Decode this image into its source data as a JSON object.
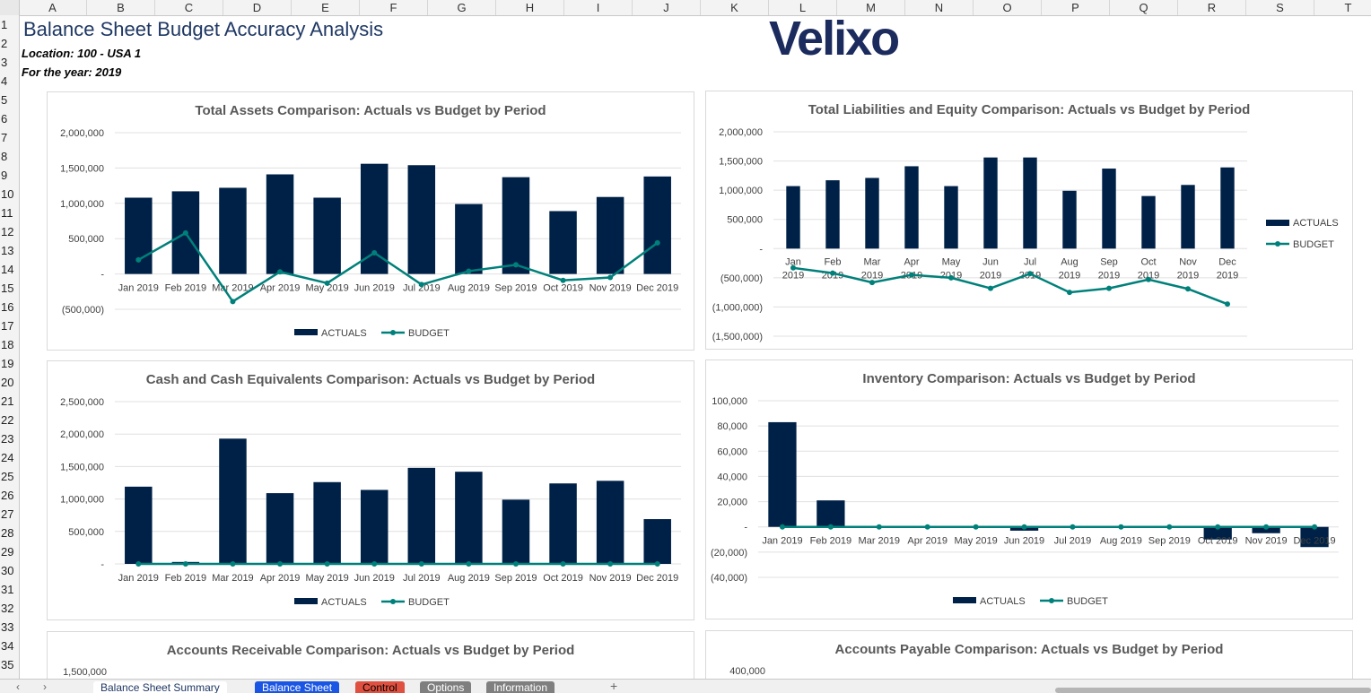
{
  "columns": [
    "A",
    "B",
    "C",
    "D",
    "E",
    "F",
    "G",
    "H",
    "I",
    "J",
    "K",
    "L",
    "M",
    "N",
    "O",
    "P",
    "Q",
    "R",
    "S",
    "T"
  ],
  "rows": [
    "1",
    "2",
    "3",
    "4",
    "5",
    "6",
    "7",
    "8",
    "9",
    "10",
    "11",
    "12",
    "13",
    "14",
    "15",
    "16",
    "17",
    "18",
    "19",
    "20",
    "21",
    "22",
    "23",
    "24",
    "25",
    "26",
    "27",
    "28",
    "29",
    "30",
    "31",
    "32",
    "33",
    "34",
    "35"
  ],
  "sheet": {
    "title": "Balance Sheet Budget Accuracy Analysis",
    "location": "Location: 100 - USA 1",
    "year": "For the year: 2019",
    "logo_text": "Velixo",
    "logo_color": "#1c2b5e"
  },
  "colors": {
    "actuals": "#002147",
    "budget": "#00807a",
    "grid": "#e0e0e0"
  },
  "tabs": [
    {
      "label": "Balance Sheet Summary",
      "bg": "#ffffff",
      "fg": "#1f3864",
      "active": true
    },
    {
      "label": "Balance Sheet",
      "bg": "#1a55e3",
      "fg": "#ffffff",
      "active": false
    },
    {
      "label": "Control",
      "bg": "#e05040",
      "fg": "#000000",
      "active": false
    },
    {
      "label": "Options",
      "bg": "#7f7f7f",
      "fg": "#ffffff",
      "active": false
    },
    {
      "label": "Information",
      "bg": "#7f7f7f",
      "fg": "#ffffff",
      "active": false
    }
  ],
  "add_sheet_label": "+",
  "chart_data": [
    {
      "type": "bar",
      "title": "Total Assets Comparison: Actuals vs Budget by Period",
      "categories": [
        "Jan 2019",
        "Feb 2019",
        "Mar 2019",
        "Apr 2019",
        "May 2019",
        "Jun 2019",
        "Jul 2019",
        "Aug 2019",
        "Sep 2019",
        "Oct 2019",
        "Nov 2019",
        "Dec 2019"
      ],
      "series": [
        {
          "name": "ACTUALS",
          "type": "bar",
          "values": [
            1080000,
            1170000,
            1220000,
            1410000,
            1080000,
            1560000,
            1540000,
            990000,
            1370000,
            890000,
            1090000,
            1380000
          ]
        },
        {
          "name": "BUDGET",
          "type": "line",
          "values": [
            200000,
            580000,
            -390000,
            30000,
            -130000,
            300000,
            -150000,
            40000,
            130000,
            -90000,
            -50000,
            440000
          ]
        }
      ],
      "yticks": [
        "2,000,000",
        "1,500,000",
        "1,000,000",
        "500,000",
        "-",
        "(500,000)"
      ],
      "ylim": [
        -500000,
        2000000
      ],
      "legend": "bottom"
    },
    {
      "type": "bar",
      "title": "Total Liabilities and Equity Comparison: Actuals vs Budget by Period",
      "categories": [
        "Jan 2019",
        "Feb 2019",
        "Mar 2019",
        "Apr 2019",
        "May 2019",
        "Jun 2019",
        "Jul 2019",
        "Aug 2019",
        "Sep 2019",
        "Oct 2019",
        "Nov 2019",
        "Dec 2019"
      ],
      "series": [
        {
          "name": "ACTUALS",
          "type": "bar",
          "values": [
            1070000,
            1170000,
            1210000,
            1410000,
            1070000,
            1560000,
            1560000,
            990000,
            1370000,
            900000,
            1090000,
            1390000
          ]
        },
        {
          "name": "BUDGET",
          "type": "line",
          "values": [
            -330000,
            -420000,
            -580000,
            -450000,
            -500000,
            -680000,
            -430000,
            -750000,
            -680000,
            -530000,
            -690000,
            -950000
          ]
        }
      ],
      "yticks": [
        "2,000,000",
        "1,500,000",
        "1,000,000",
        "500,000",
        "-",
        "(500,000)",
        "(1,000,000)",
        "(1,500,000)"
      ],
      "ylim": [
        -1500000,
        2000000
      ],
      "legend": "right"
    },
    {
      "type": "bar",
      "title": "Cash and Cash Equivalents Comparison: Actuals vs Budget by Period",
      "categories": [
        "Jan 2019",
        "Feb 2019",
        "Mar 2019",
        "Apr 2019",
        "May 2019",
        "Jun 2019",
        "Jul 2019",
        "Aug 2019",
        "Sep 2019",
        "Oct 2019",
        "Nov 2019",
        "Dec 2019"
      ],
      "series": [
        {
          "name": "ACTUALS",
          "type": "bar",
          "values": [
            1190000,
            30000,
            1930000,
            1090000,
            1260000,
            1140000,
            1480000,
            1420000,
            990000,
            1240000,
            1280000,
            690000
          ]
        },
        {
          "name": "BUDGET",
          "type": "line",
          "values": [
            0,
            0,
            0,
            0,
            0,
            0,
            0,
            0,
            0,
            0,
            0,
            0
          ]
        }
      ],
      "yticks": [
        "2,500,000",
        "2,000,000",
        "1,500,000",
        "1,000,000",
        "500,000",
        "-"
      ],
      "ylim": [
        0,
        2500000
      ],
      "legend": "bottom"
    },
    {
      "type": "bar",
      "title": "Inventory Comparison: Actuals vs Budget by Period",
      "categories": [
        "Jan 2019",
        "Feb 2019",
        "Mar 2019",
        "Apr 2019",
        "May 2019",
        "Jun 2019",
        "Jul 2019",
        "Aug 2019",
        "Sep 2019",
        "Oct 2019",
        "Nov 2019",
        "Dec 2019"
      ],
      "series": [
        {
          "name": "ACTUALS",
          "type": "bar",
          "values": [
            83000,
            21000,
            0,
            0,
            0,
            -3000,
            0,
            0,
            0,
            -10000,
            -5000,
            -16000
          ]
        },
        {
          "name": "BUDGET",
          "type": "line",
          "values": [
            0,
            0,
            0,
            0,
            0,
            0,
            0,
            0,
            0,
            0,
            0,
            0
          ]
        }
      ],
      "yticks": [
        "100,000",
        "80,000",
        "60,000",
        "40,000",
        "20,000",
        "-",
        "(20,000)",
        "(40,000)"
      ],
      "ylim": [
        -40000,
        100000
      ],
      "legend": "bottom"
    },
    {
      "type": "bar",
      "title": "Accounts Receivable Comparison: Actuals vs Budget by Period",
      "yticks": [
        "1,500,000"
      ]
    },
    {
      "type": "bar",
      "title": "Accounts Payable Comparison: Actuals vs Budget by Period",
      "yticks": [
        "400,000"
      ]
    }
  ]
}
